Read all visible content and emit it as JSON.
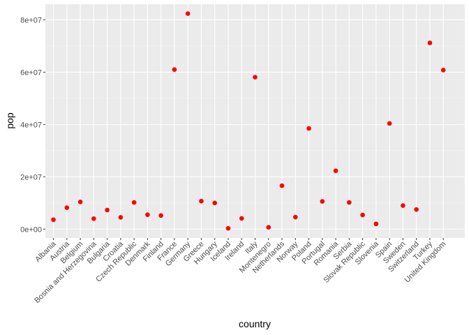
{
  "chart_data": {
    "type": "scatter",
    "xlabel": "country",
    "ylabel": "pop",
    "ylim": [
      -3400000,
      86000000
    ],
    "yticks": [
      0,
      20000000,
      40000000,
      60000000,
      80000000
    ],
    "ytick_labels": [
      "0e+00",
      "2e+07",
      "4e+07",
      "6e+07",
      "8e+07"
    ],
    "grid": true,
    "legend": "none",
    "colors": {
      "panel": "#ebebeb",
      "grid_major": "#ffffff",
      "point": "#ff0000"
    },
    "categories": [
      "Albania",
      "Austria",
      "Belgium",
      "Bosnia and Herzegovina",
      "Bulgaria",
      "Croatia",
      "Czech Republic",
      "Denmark",
      "Finland",
      "France",
      "Germany",
      "Greece",
      "Hungary",
      "Iceland",
      "Ireland",
      "Italy",
      "Montenegro",
      "Netherlands",
      "Norway",
      "Poland",
      "Portugal",
      "Romania",
      "Serbia",
      "Slovak Republic",
      "Slovenia",
      "Spain",
      "Sweden",
      "Switzerland",
      "Turkey",
      "United Kingdom"
    ],
    "values": [
      3600000,
      8200000,
      10400000,
      4000000,
      7300000,
      4500000,
      10200000,
      5500000,
      5200000,
      61000000,
      82400000,
      10700000,
      10000000,
      300000,
      4100000,
      58100000,
      700000,
      16600000,
      4600000,
      38500000,
      10600000,
      22300000,
      10200000,
      5400000,
      2000000,
      40400000,
      9000000,
      7500000,
      71200000,
      60800000
    ]
  }
}
